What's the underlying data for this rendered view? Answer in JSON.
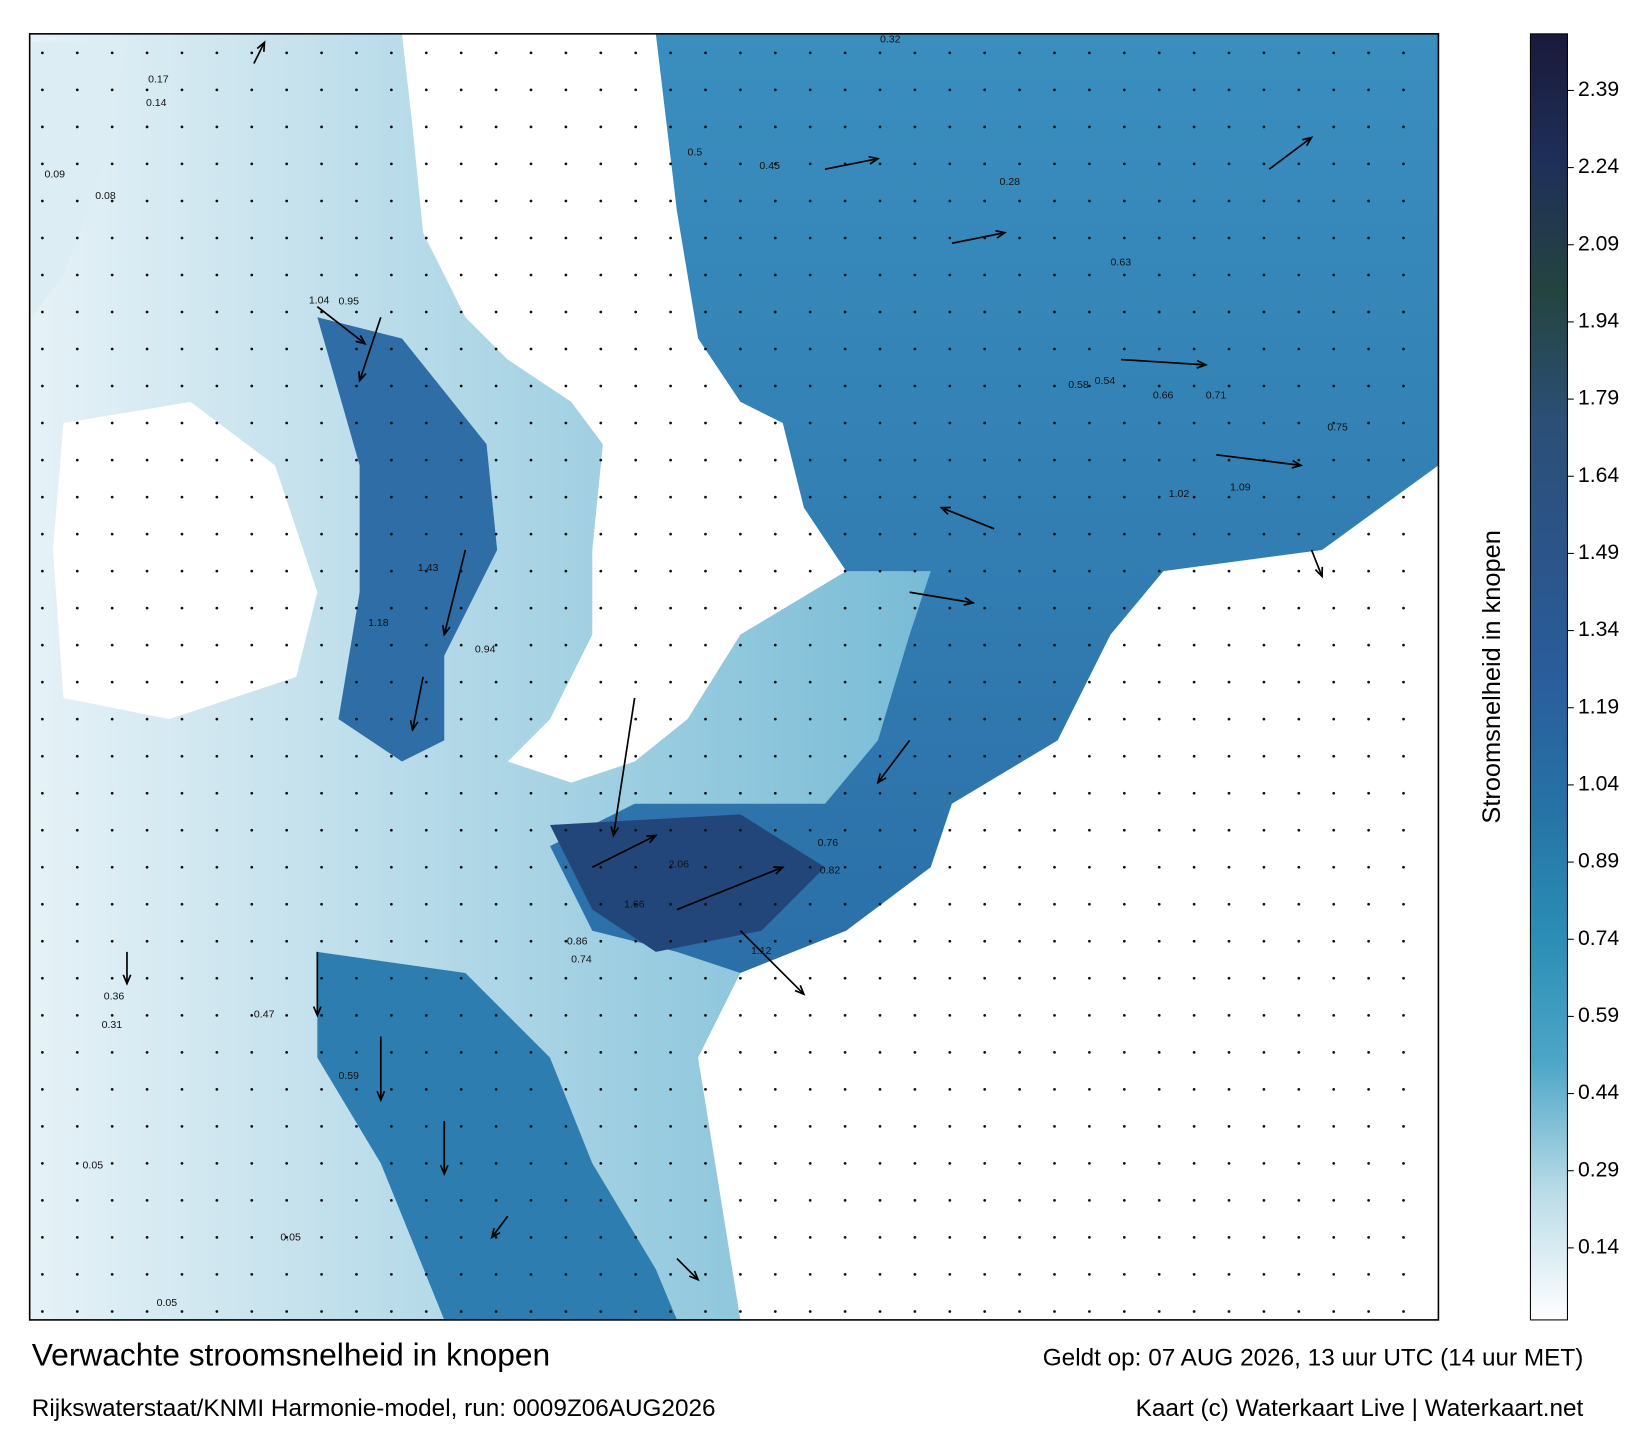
{
  "map": {
    "title": "Verwachte stroomsnelheid in knopen",
    "source": "Rijkswaterstaat/KNMI Harmonie-model, run: 0009Z06AUG2026",
    "valid_time": "Geldt op: 07 AUG 2026, 13 uur UTC (14 uur MET)",
    "credit": "Kaart (c) Waterkaart Live | Waterkaart.net",
    "colorbar": {
      "label": "Stroomsnelheid in knopen",
      "lim": [
        0,
        2.5
      ],
      "ticks": [
        0.14,
        0.29,
        0.44,
        0.59,
        0.74,
        0.89,
        1.04,
        1.19,
        1.34,
        1.49,
        1.64,
        1.79,
        1.94,
        2.09,
        2.24,
        2.39
      ],
      "colors": [
        "#ffffff",
        "#b9dbe7",
        "#4da6c8",
        "#2a8db5",
        "#2672a6",
        "#2a5d9c",
        "#2b5489",
        "#2b4f76",
        "#24443f",
        "#1f2f5a",
        "#1a1a3a"
      ]
    },
    "speed_labels": [
      0.17,
      0.14,
      0.09,
      0.08,
      1.04,
      0.95,
      1.43,
      1.18,
      0.94,
      2.06,
      1.66,
      0.86,
      0.74,
      1.12,
      0.76,
      0.82,
      0.66,
      0.71,
      1.02,
      1.09,
      0.75,
      0.54,
      0.58,
      0.63,
      0.5,
      0.45,
      0.32,
      0.28,
      0.05,
      0.05,
      0.05,
      0.59,
      0.47,
      0.36,
      0.31
    ]
  }
}
